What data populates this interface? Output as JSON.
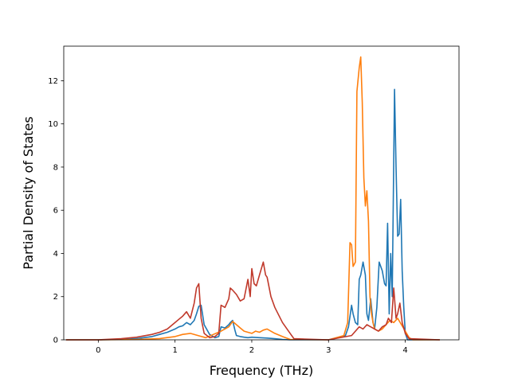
{
  "chart_data": {
    "type": "line",
    "title": "",
    "xlabel": "Frequency (THz)",
    "ylabel": "Partial Density of States",
    "xlim": [
      -0.45,
      4.7
    ],
    "ylim": [
      0,
      13.6
    ],
    "xticks": [
      {
        "value": 0,
        "label": "0"
      },
      {
        "value": 1,
        "label": "1"
      },
      {
        "value": 2,
        "label": "2"
      },
      {
        "value": 3,
        "label": "3"
      },
      {
        "value": 4,
        "label": "4"
      }
    ],
    "yticks": [
      {
        "value": 0,
        "label": "0"
      },
      {
        "value": 2,
        "label": "2"
      },
      {
        "value": 4,
        "label": "4"
      },
      {
        "value": 6,
        "label": "6"
      },
      {
        "value": 8,
        "label": "8"
      },
      {
        "value": 10,
        "label": "10"
      },
      {
        "value": 12,
        "label": "12"
      }
    ],
    "grid": false,
    "legend": "none",
    "series": [
      {
        "color": "#1f77b4",
        "x": [
          -0.42,
          0.0,
          0.3,
          0.5,
          0.7,
          0.8,
          0.9,
          1.0,
          1.05,
          1.1,
          1.15,
          1.2,
          1.25,
          1.28,
          1.31,
          1.34,
          1.38,
          1.45,
          1.52,
          1.57,
          1.6,
          1.65,
          1.7,
          1.72,
          1.75,
          1.78,
          1.8,
          1.85,
          1.9,
          1.95,
          2.0,
          2.1,
          2.2,
          2.3,
          2.4,
          2.5,
          3.0,
          3.22,
          3.26,
          3.3,
          3.32,
          3.35,
          3.38,
          3.4,
          3.42,
          3.45,
          3.48,
          3.5,
          3.52,
          3.55,
          3.58,
          3.6,
          3.63,
          3.66,
          3.7,
          3.73,
          3.75,
          3.77,
          3.79,
          3.81,
          3.83,
          3.86,
          3.88,
          3.9,
          3.92,
          3.94,
          3.96,
          3.98,
          4.0,
          4.03,
          4.06,
          4.1,
          4.45
        ],
        "y": [
          0,
          0,
          0.02,
          0.06,
          0.15,
          0.25,
          0.35,
          0.5,
          0.6,
          0.65,
          0.8,
          0.7,
          0.9,
          1.2,
          1.55,
          1.6,
          0.7,
          0.25,
          0.1,
          0.15,
          0.6,
          0.55,
          0.7,
          0.8,
          0.9,
          0.45,
          0.2,
          0.15,
          0.12,
          0.1,
          0.12,
          0.1,
          0.08,
          0.05,
          0.02,
          0.0,
          0,
          0.2,
          0.6,
          1.6,
          1.2,
          0.8,
          0.7,
          2.8,
          3.0,
          3.6,
          3.0,
          1.2,
          0.9,
          1.9,
          0.8,
          0.5,
          1.5,
          3.6,
          3.2,
          2.6,
          2.5,
          5.4,
          1.2,
          4.0,
          2.0,
          11.6,
          8.0,
          4.8,
          4.9,
          6.5,
          3.2,
          1.5,
          0.3,
          0,
          0,
          0,
          0
        ]
      },
      {
        "color": "#ff7f0e",
        "x": [
          -0.42,
          0.0,
          0.5,
          0.8,
          1.0,
          1.1,
          1.2,
          1.3,
          1.4,
          1.6,
          1.7,
          1.75,
          1.8,
          1.85,
          1.9,
          1.95,
          2.0,
          2.05,
          2.1,
          2.15,
          2.2,
          2.3,
          2.4,
          2.5,
          3.0,
          3.2,
          3.25,
          3.28,
          3.3,
          3.32,
          3.35,
          3.37,
          3.4,
          3.42,
          3.44,
          3.46,
          3.48,
          3.5,
          3.52,
          3.54,
          3.56,
          3.58,
          3.6,
          3.65,
          3.7,
          3.75,
          3.8,
          3.85,
          3.9,
          3.95,
          4.0,
          4.05,
          4.1,
          4.45
        ],
        "y": [
          0,
          0,
          0.02,
          0.06,
          0.15,
          0.25,
          0.3,
          0.2,
          0.1,
          0.4,
          0.6,
          0.85,
          0.7,
          0.55,
          0.4,
          0.35,
          0.3,
          0.4,
          0.35,
          0.45,
          0.5,
          0.3,
          0.15,
          0.02,
          0,
          0.2,
          0.8,
          4.5,
          4.4,
          3.4,
          3.6,
          11.5,
          12.6,
          13.1,
          11.0,
          7.5,
          6.2,
          6.9,
          5.5,
          2.0,
          1.2,
          0.8,
          0.5,
          0.4,
          0.5,
          0.7,
          0.9,
          0.8,
          1.0,
          0.7,
          0.4,
          0.1,
          0,
          0
        ]
      },
      {
        "color": "#c0392b",
        "x": [
          -0.42,
          0.0,
          0.3,
          0.5,
          0.7,
          0.8,
          0.9,
          1.0,
          1.05,
          1.1,
          1.15,
          1.2,
          1.25,
          1.28,
          1.31,
          1.34,
          1.38,
          1.45,
          1.52,
          1.57,
          1.6,
          1.65,
          1.7,
          1.72,
          1.75,
          1.8,
          1.85,
          1.9,
          1.95,
          1.98,
          2.0,
          2.03,
          2.06,
          2.1,
          2.15,
          2.18,
          2.2,
          2.25,
          2.3,
          2.4,
          2.5,
          2.55,
          3.0,
          3.3,
          3.4,
          3.45,
          3.5,
          3.55,
          3.6,
          3.65,
          3.7,
          3.75,
          3.78,
          3.8,
          3.82,
          3.85,
          3.88,
          3.9,
          3.93,
          3.96,
          4.0,
          4.05,
          4.45
        ],
        "y": [
          0,
          0,
          0.05,
          0.12,
          0.25,
          0.35,
          0.5,
          0.8,
          0.95,
          1.1,
          1.3,
          1.0,
          1.7,
          2.4,
          2.6,
          1.0,
          0.3,
          0.1,
          0.15,
          0.3,
          1.6,
          1.5,
          1.9,
          2.4,
          2.3,
          2.1,
          1.8,
          1.9,
          2.8,
          2.0,
          3.3,
          2.6,
          2.5,
          3.0,
          3.6,
          3.0,
          2.9,
          2.0,
          1.5,
          0.8,
          0.3,
          0.05,
          0,
          0.2,
          0.6,
          0.5,
          0.7,
          0.6,
          0.5,
          0.4,
          0.6,
          0.7,
          1.0,
          0.9,
          0.8,
          2.4,
          1.0,
          1.2,
          1.7,
          0.8,
          0.3,
          0.05,
          0
        ]
      }
    ]
  }
}
